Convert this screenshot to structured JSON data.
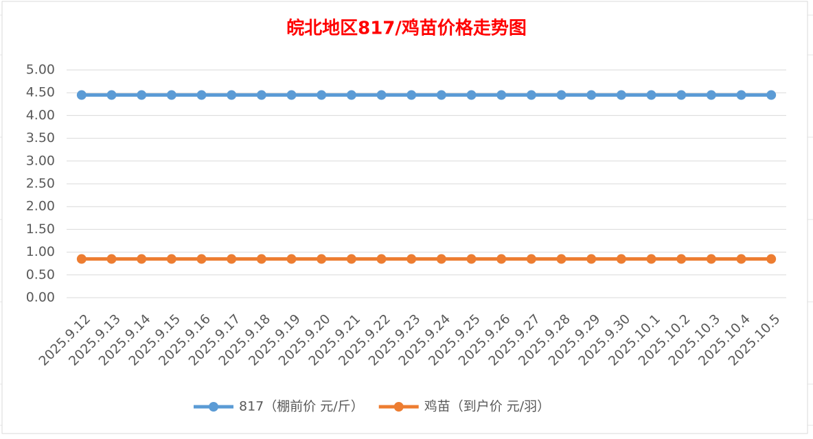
{
  "chart_data": {
    "type": "line",
    "title": "皖北地区817/鸡苗价格走势图",
    "categories": [
      "2025.9.12",
      "2025.9.13",
      "2025.9.14",
      "2025.9.15",
      "2025.9.16",
      "2025.9.17",
      "2025.9.18",
      "2025.9.19",
      "2025.9.20",
      "2025.9.21",
      "2025.9.22",
      "2025.9.23",
      "2025.9.24",
      "2025.9.25",
      "2025.9.26",
      "2025.9.27",
      "2025.9.28",
      "2025.9.29",
      "2025.9.30",
      "2025.10.1",
      "2025.10.2",
      "2025.10.3",
      "2025.10.4",
      "2025.10.5"
    ],
    "series": [
      {
        "name": "817（棚前价 元/斤）",
        "color": "#5b9bd5",
        "values": [
          4.45,
          4.45,
          4.45,
          4.45,
          4.45,
          4.45,
          4.45,
          4.45,
          4.45,
          4.45,
          4.45,
          4.45,
          4.45,
          4.45,
          4.45,
          4.45,
          4.45,
          4.45,
          4.45,
          4.45,
          4.45,
          4.45,
          4.45,
          4.45
        ]
      },
      {
        "name": "鸡苗（到户价 元/羽）",
        "color": "#ed7d31",
        "values": [
          0.85,
          0.85,
          0.85,
          0.85,
          0.85,
          0.85,
          0.85,
          0.85,
          0.85,
          0.85,
          0.85,
          0.85,
          0.85,
          0.85,
          0.85,
          0.85,
          0.85,
          0.85,
          0.85,
          0.85,
          0.85,
          0.85,
          0.85,
          0.85
        ]
      }
    ],
    "ylim": [
      0,
      5
    ],
    "yticks": [
      {
        "value": 0,
        "label": "0.00"
      },
      {
        "value": 0.5,
        "label": "0.50"
      },
      {
        "value": 1,
        "label": "1.00"
      },
      {
        "value": 1.5,
        "label": "1.50"
      },
      {
        "value": 2,
        "label": "2.00"
      },
      {
        "value": 2.5,
        "label": "2.50"
      },
      {
        "value": 3,
        "label": "3.00"
      },
      {
        "value": 3.5,
        "label": "3.50"
      },
      {
        "value": 4,
        "label": "4.00"
      },
      {
        "value": 4.5,
        "label": "4.50"
      },
      {
        "value": 5,
        "label": "5.00"
      }
    ],
    "grid": true,
    "legend": "bottom"
  }
}
